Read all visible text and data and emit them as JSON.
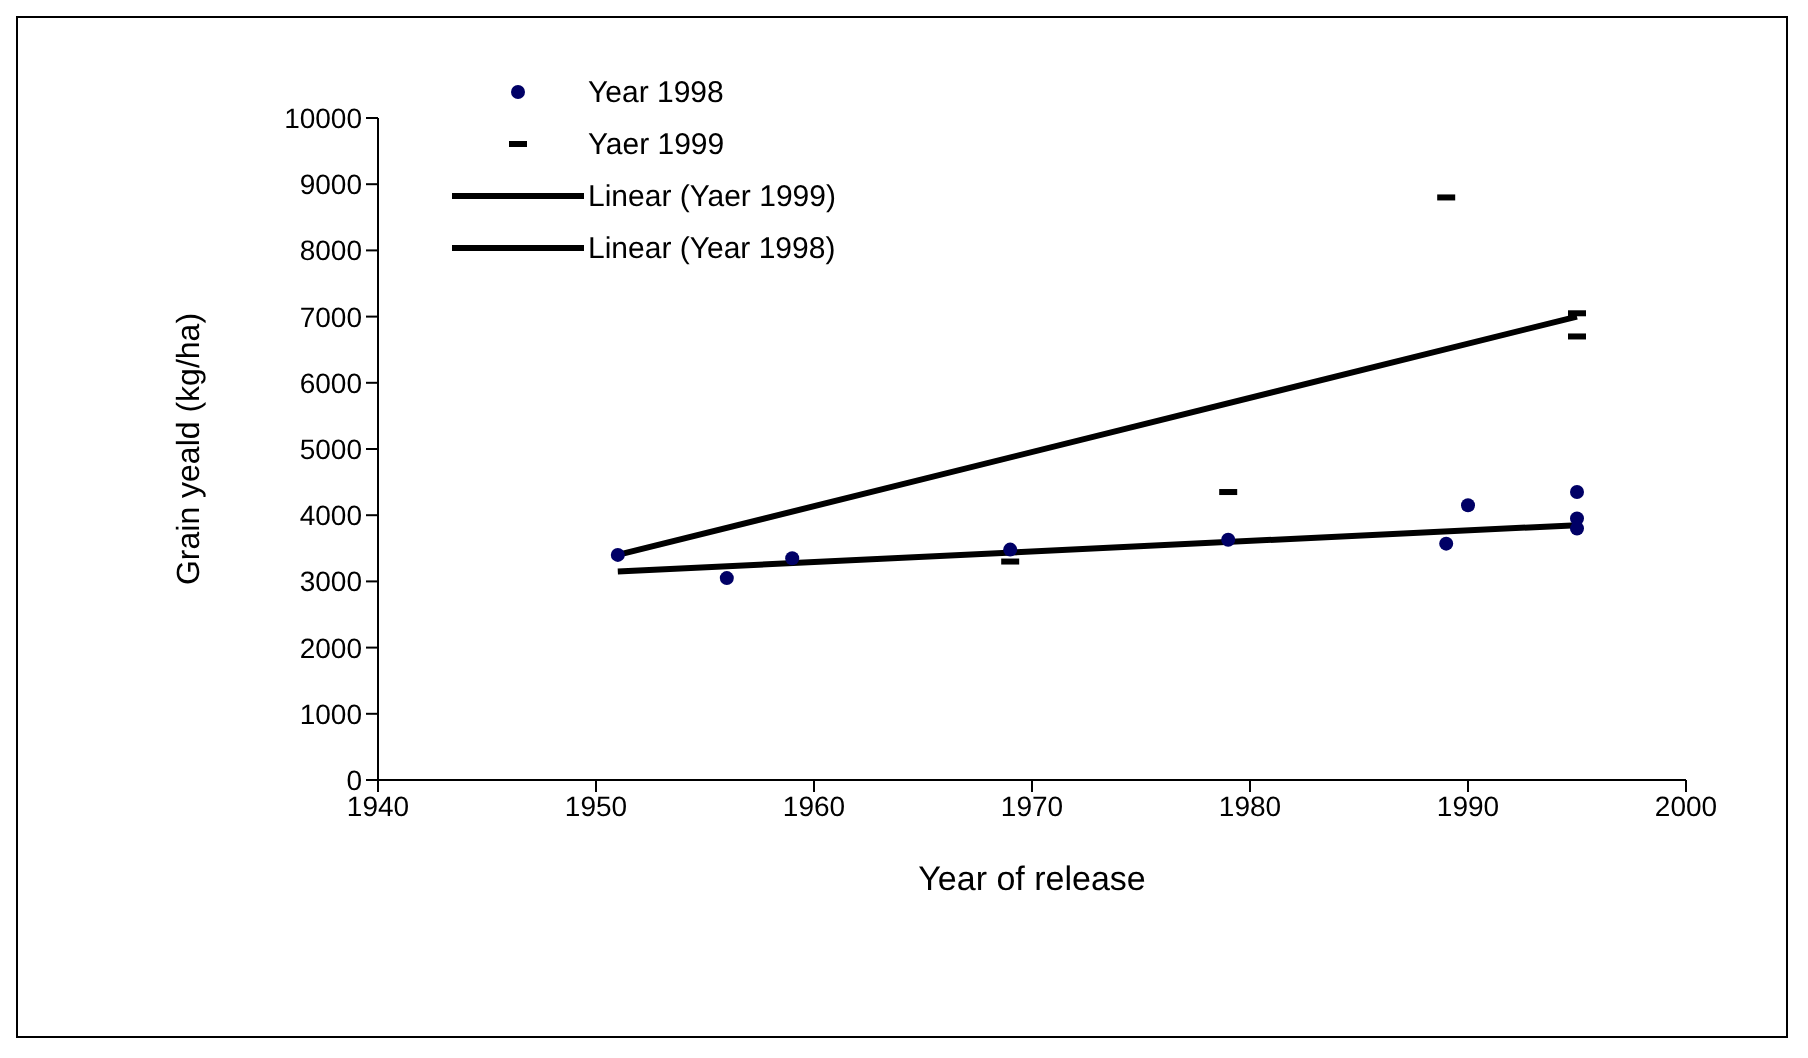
{
  "chart_data": {
    "type": "scatter",
    "xlabel": "Year of release",
    "ylabel": "Grain yeald (kg/ha)",
    "xlim": [
      1940,
      2000
    ],
    "xticks": [
      1940,
      1950,
      1960,
      1970,
      1980,
      1990,
      2000
    ],
    "ylim": [
      0,
      10000
    ],
    "yticks": [
      0,
      1000,
      2000,
      3000,
      4000,
      5000,
      6000,
      7000,
      8000,
      9000,
      10000
    ],
    "grid": false,
    "legend": "top left",
    "series": [
      {
        "name": "Year 1998",
        "color": "#000066",
        "marker": "circle",
        "x": [
          1951,
          1956,
          1959,
          1969,
          1979,
          1989,
          1990,
          1995,
          1995,
          1995
        ],
        "values": [
          3400,
          3050,
          3350,
          3480,
          3630,
          3570,
          4150,
          4350,
          3950,
          3800
        ]
      },
      {
        "name": "Yaer 1999",
        "color": "#000000",
        "x": [
          1969,
          1979,
          1989,
          1995,
          1995
        ],
        "values": [
          3300,
          4350,
          8800,
          7050,
          6700
        ]
      },
      {
        "name": "Linear (Yaer 1999)",
        "type": "line",
        "color": "#000000",
        "marker": "none",
        "line_style": "solid",
        "x": [
          1951,
          1995
        ],
        "values": [
          3400,
          7000
        ]
      },
      {
        "name": "Linear (Year 1998)",
        "type": "line",
        "color": "#000000",
        "marker": "none",
        "line_style": "solid",
        "x": [
          1951,
          1995
        ],
        "values": [
          3150,
          3850
        ]
      }
    ]
  }
}
